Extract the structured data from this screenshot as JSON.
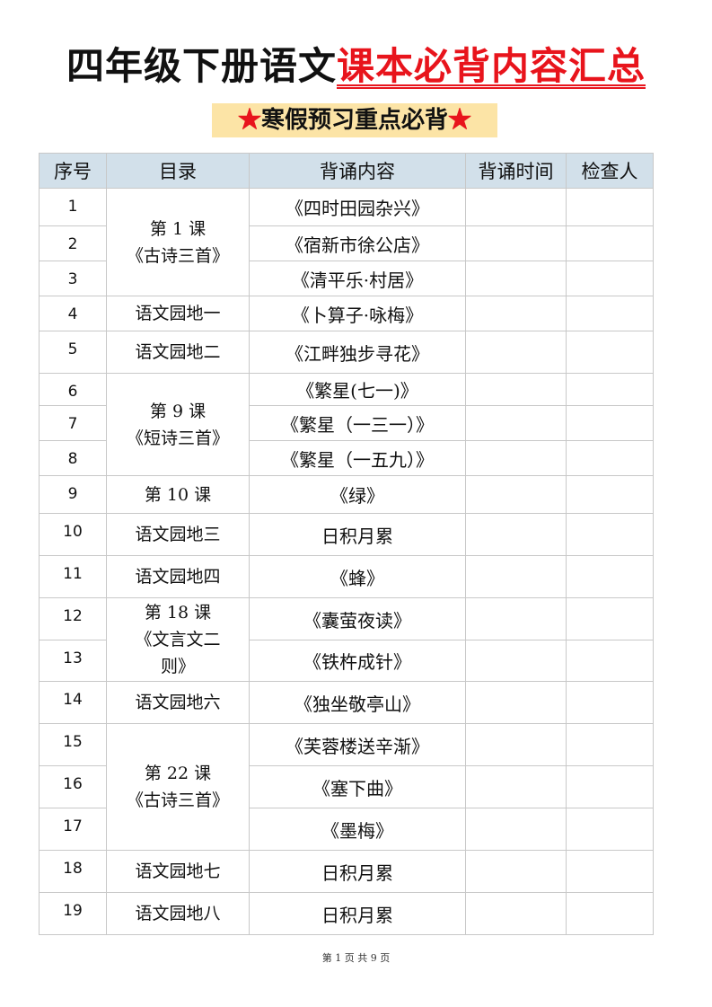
{
  "title": {
    "black": "四年级下册语文",
    "red": "课本必背内容汇总"
  },
  "subtitle": {
    "star": "★",
    "text": "寒假预习重点必背"
  },
  "columns": [
    "序号",
    "目录",
    "背诵内容",
    "背诵时间",
    "检查人"
  ],
  "groups": [
    {
      "lesson": [
        "第 1 课",
        "《古诗三首》"
      ],
      "rows": [
        {
          "n": "1",
          "c": "《四时田园杂兴》"
        },
        {
          "n": "2",
          "c": "《宿新市徐公店》"
        },
        {
          "n": "3",
          "c": "《清平乐·村居》"
        }
      ]
    },
    {
      "lesson": [
        "语文园地一"
      ],
      "rows": [
        {
          "n": "4",
          "c": "《卜算子·咏梅》"
        }
      ]
    },
    {
      "lesson": [
        "语文园地二"
      ],
      "rows": [
        {
          "n": "5",
          "c": "《江畔独步寻花》"
        }
      ]
    },
    {
      "lesson": [
        "第 9 课",
        "《短诗三首》"
      ],
      "rows": [
        {
          "n": "6",
          "c": "《繁星(七一)》"
        },
        {
          "n": "7",
          "c": "《繁星（一三一）》"
        },
        {
          "n": "8",
          "c": "《繁星（一五九）》"
        }
      ]
    },
    {
      "lesson": [
        "第 10 课"
      ],
      "rows": [
        {
          "n": "9",
          "c": "《绿》"
        }
      ]
    },
    {
      "lesson": [
        "语文园地三"
      ],
      "rows": [
        {
          "n": "10",
          "c": "日积月累"
        }
      ]
    },
    {
      "lesson": [
        "语文园地四"
      ],
      "rows": [
        {
          "n": "11",
          "c": "《蜂》"
        }
      ]
    },
    {
      "lesson": [
        "第 18 课",
        "《文言文二",
        "则》"
      ],
      "rows": [
        {
          "n": "12",
          "c": "《囊萤夜读》"
        },
        {
          "n": "13",
          "c": "《铁杵成针》"
        }
      ]
    },
    {
      "lesson": [
        "语文园地六"
      ],
      "rows": [
        {
          "n": "14",
          "c": "《独坐敬亭山》"
        }
      ]
    },
    {
      "lesson": [
        "第 22 课",
        "《古诗三首》"
      ],
      "rows": [
        {
          "n": "15",
          "c": "《芙蓉楼送辛渐》"
        },
        {
          "n": "16",
          "c": "《塞下曲》"
        },
        {
          "n": "17",
          "c": "《墨梅》"
        }
      ]
    },
    {
      "lesson": [
        "语文园地七"
      ],
      "rows": [
        {
          "n": "18",
          "c": "日积月累"
        }
      ]
    },
    {
      "lesson": [
        "语文园地八"
      ],
      "rows": [
        {
          "n": "19",
          "c": "日积月累"
        }
      ]
    }
  ],
  "footer": "第 1 页 共 9 页"
}
